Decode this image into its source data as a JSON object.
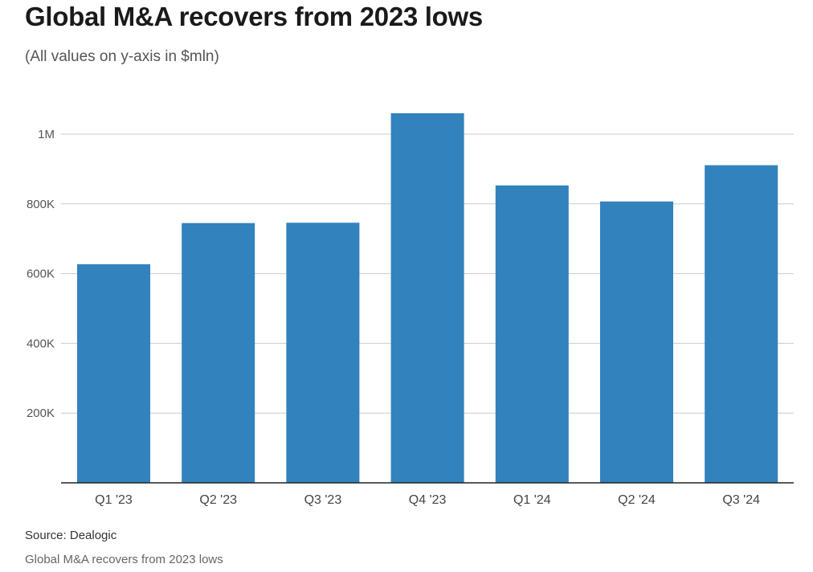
{
  "chart_data": {
    "type": "bar",
    "title": "Global M&A recovers from 2023 lows",
    "subtitle": "(All values on y-axis in $mln)",
    "categories": [
      "Q1 '23",
      "Q2 '23",
      "Q3 '23",
      "Q4 '23",
      "Q1 '24",
      "Q2 '24",
      "Q3 '24"
    ],
    "values": [
      627000,
      745000,
      746000,
      1060000,
      853000,
      807000,
      911000
    ],
    "ylim": [
      0,
      1100000
    ],
    "yticks": [
      200000,
      400000,
      600000,
      800000,
      1000000
    ],
    "ytick_labels": [
      "200K",
      "400K",
      "600K",
      "800K",
      "1M"
    ],
    "xlabel": "",
    "ylabel": "",
    "grid": true,
    "bar_color": "#3182bd"
  },
  "source": "Source: Dealogic",
  "footer_note": "Global M&A recovers from 2023 lows"
}
